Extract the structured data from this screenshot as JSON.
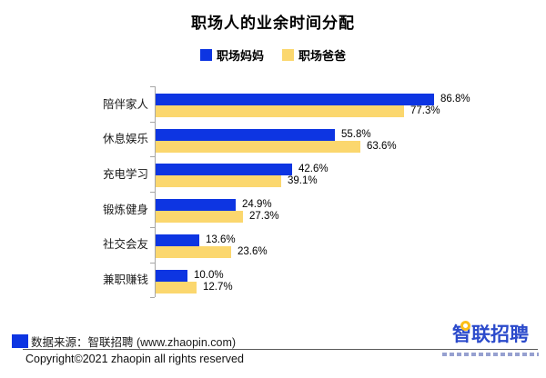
{
  "title": "职场人的业余时间分配",
  "colors": {
    "mom_blue": "#0d35e2",
    "dad_yellow": "#fbd76e",
    "axis_gray": "#a6a6a6",
    "logo_blue": "#2b4acb",
    "logo_dot_yellow": "#fcbf17"
  },
  "legend": [
    {
      "label": "职场妈妈",
      "color": "#0d35e2"
    },
    {
      "label": "职场爸爸",
      "color": "#fbd76e"
    }
  ],
  "chart_data": {
    "type": "bar",
    "orientation": "horizontal",
    "title": "职场人的业余时间分配",
    "categories": [
      "陪伴家人",
      "休息娱乐",
      "充电学习",
      "锻炼健身",
      "社交会友",
      "兼职赚钱"
    ],
    "series": [
      {
        "name": "职场妈妈",
        "color": "#0d35e2",
        "values": [
          86.8,
          55.8,
          42.6,
          24.9,
          13.6,
          10.0
        ]
      },
      {
        "name": "职场爸爸",
        "color": "#fbd76e",
        "values": [
          77.3,
          63.6,
          39.1,
          27.3,
          23.6,
          12.7
        ]
      }
    ],
    "value_suffix": "%",
    "value_labels": true,
    "xlim": [
      0,
      100
    ],
    "grid": false,
    "legend_position": "top-center"
  },
  "footer": {
    "source": "数据来源：智联招聘 (www.zhaopin.com)",
    "copyright": "Copyright©2021 zhaopin all rights reserved",
    "logo_text": "智联招聘"
  }
}
